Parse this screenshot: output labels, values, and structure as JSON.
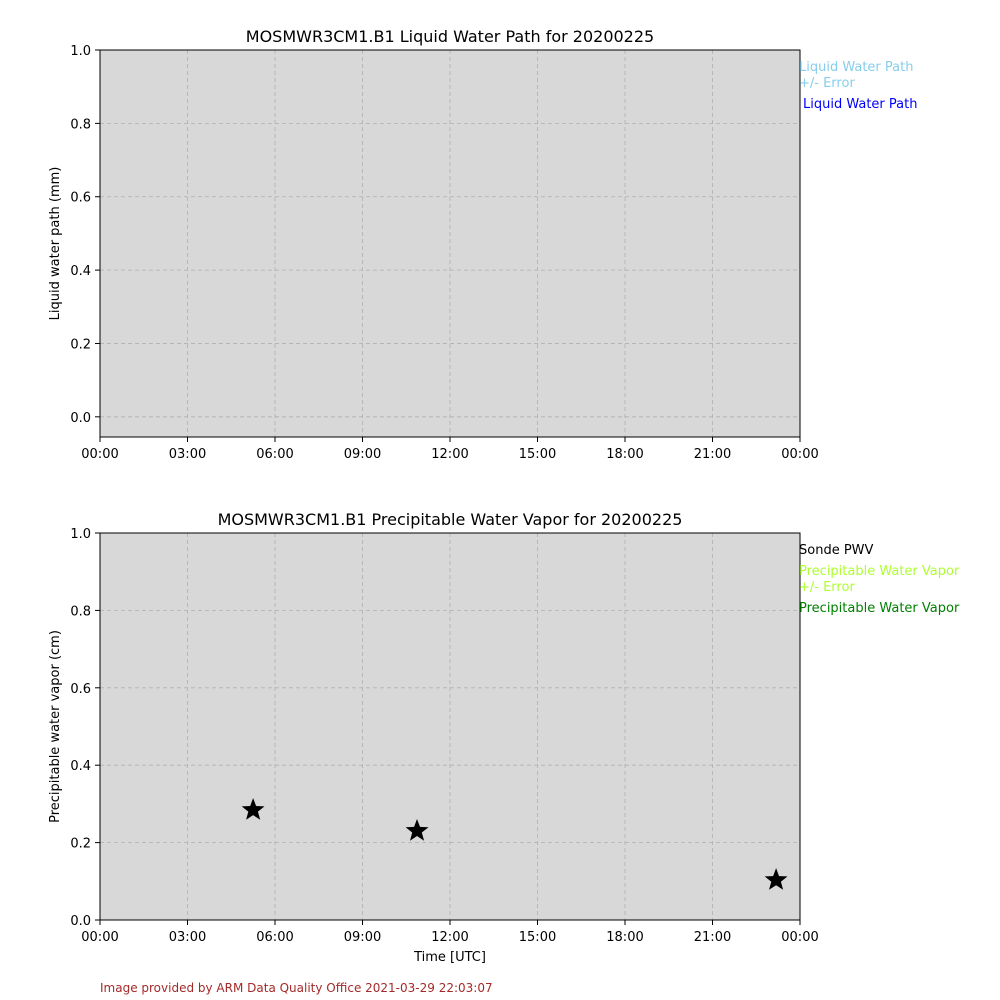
{
  "chart_data": [
    {
      "type": "line",
      "title": "MOSMWR3CM1.B1 Liquid Water Path for 20200225",
      "xlabel": "",
      "ylabel": "Liquid water path (mm)",
      "xlim_hours": [
        0,
        24
      ],
      "ylim": [
        -0.055,
        1.0
      ],
      "x_ticks": [
        "00:00",
        "03:00",
        "06:00",
        "09:00",
        "12:00",
        "15:00",
        "18:00",
        "21:00",
        "00:00"
      ],
      "y_ticks": [
        0.0,
        0.2,
        0.4,
        0.6,
        0.8,
        1.0
      ],
      "y_tick_labels": [
        "0.0",
        "0.2",
        "0.4",
        "0.6",
        "0.8",
        "1.0"
      ],
      "grid": true,
      "background": "#d8d8d8",
      "legend_placement": "outside-top-right",
      "legend": [
        {
          "label": "Liquid Water Path\n+/- Error",
          "lines": [
            "Liquid Water Path",
            "+/- Error"
          ],
          "color": "#87ceeb"
        },
        {
          "label": "Liquid Water Path",
          "lines": [
            "Liquid Water Path"
          ],
          "color": "#0000ff"
        }
      ],
      "series": []
    },
    {
      "type": "scatter",
      "title": "MOSMWR3CM1.B1 Precipitable Water Vapor for 20200225",
      "xlabel": "Time [UTC]",
      "ylabel": "Precipitable water vapor (cm)",
      "xlim_hours": [
        0,
        24
      ],
      "ylim": [
        0.0,
        1.0
      ],
      "x_ticks": [
        "00:00",
        "03:00",
        "06:00",
        "09:00",
        "12:00",
        "15:00",
        "18:00",
        "21:00",
        "00:00"
      ],
      "y_ticks": [
        0.0,
        0.2,
        0.4,
        0.6,
        0.8,
        1.0
      ],
      "y_tick_labels": [
        "0.0",
        "0.2",
        "0.4",
        "0.6",
        "0.8",
        "1.0"
      ],
      "grid": true,
      "background": "#d8d8d8",
      "legend_placement": "outside-top-right",
      "legend": [
        {
          "label": "Sonde PWV",
          "lines": [
            "Sonde PWV"
          ],
          "color": "#000000"
        },
        {
          "label": "Precipitable Water Vapor\n+/- Error",
          "lines": [
            "Precipitable Water Vapor",
            "+/- Error"
          ],
          "color": "#adff2f"
        },
        {
          "label": "Precipitable Water Vapor",
          "lines": [
            "Precipitable Water Vapor"
          ],
          "color": "#008000"
        }
      ],
      "series": [
        {
          "name": "Sonde PWV",
          "marker": "star",
          "color": "#000000",
          "x_hours": [
            5.25,
            10.87,
            23.18
          ],
          "y": [
            0.284,
            0.23,
            0.103
          ]
        }
      ]
    }
  ],
  "footer": "Image provided by ARM Data Quality Office 2021-03-29 22:03:07"
}
